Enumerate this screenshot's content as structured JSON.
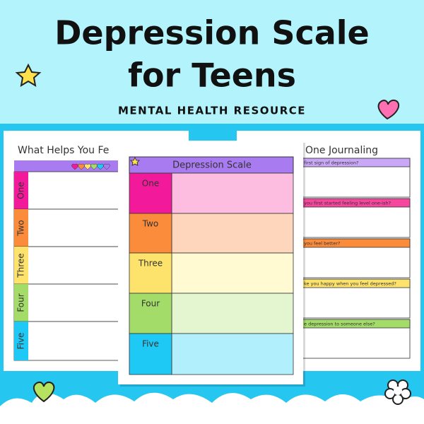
{
  "header": {
    "title_line1": "Depression Scale",
    "title_line2": "for Teens",
    "subtitle": "MENTAL HEALTH RESOURCE"
  },
  "left_page": {
    "title": "What Helps You Fe",
    "rows": [
      "One",
      "Two",
      "Three",
      "Four",
      "Five"
    ]
  },
  "center_page": {
    "title": "Depression Scale",
    "rows": [
      "One",
      "Two",
      "Three",
      "Four",
      "Five"
    ]
  },
  "right_page": {
    "title": "One Journaling",
    "prompts": [
      "first sign of depression?",
      "you first started feeling level one-ish?",
      "you feel better?",
      "ke you happy when you feel depressed?",
      "e depression to someone else?"
    ]
  }
}
